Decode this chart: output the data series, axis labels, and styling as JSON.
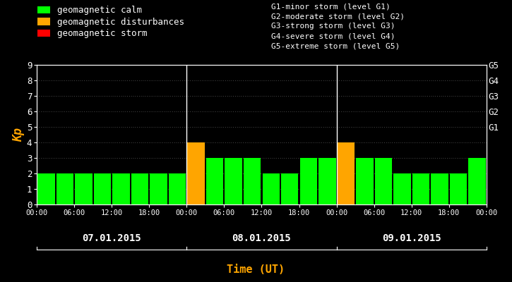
{
  "background_color": "#000000",
  "bar_values": [
    2,
    2,
    2,
    2,
    2,
    2,
    2,
    2,
    4,
    3,
    3,
    3,
    2,
    2,
    3,
    3,
    4,
    3,
    3,
    2,
    2,
    2,
    2,
    3
  ],
  "bar_colors": [
    "#00ff00",
    "#00ff00",
    "#00ff00",
    "#00ff00",
    "#00ff00",
    "#00ff00",
    "#00ff00",
    "#00ff00",
    "#ffa500",
    "#00ff00",
    "#00ff00",
    "#00ff00",
    "#00ff00",
    "#00ff00",
    "#00ff00",
    "#00ff00",
    "#ffa500",
    "#00ff00",
    "#00ff00",
    "#00ff00",
    "#00ff00",
    "#00ff00",
    "#00ff00",
    "#00ff00"
  ],
  "xtick_labels": [
    "00:00",
    "06:00",
    "12:00",
    "18:00",
    "00:00",
    "06:00",
    "12:00",
    "18:00",
    "00:00",
    "06:00",
    "12:00",
    "18:00",
    "00:00"
  ],
  "day_labels": [
    "07.01.2015",
    "08.01.2015",
    "09.01.2015"
  ],
  "day_dividers": [
    7.5,
    15.5
  ],
  "ylabel": "Kp",
  "xlabel": "Time (UT)",
  "ylim": [
    0,
    9
  ],
  "yticks": [
    0,
    1,
    2,
    3,
    4,
    5,
    6,
    7,
    8,
    9
  ],
  "right_ytick_positions": [
    5,
    6,
    7,
    8,
    9
  ],
  "right_ytick_texts": [
    "G1",
    "G2",
    "G3",
    "G4",
    "G5"
  ],
  "legend_items": [
    {
      "label": "geomagnetic calm",
      "color": "#00ff00"
    },
    {
      "label": "geomagnetic disturbances",
      "color": "#ffa500"
    },
    {
      "label": "geomagnetic storm",
      "color": "#ff0000"
    }
  ],
  "legend2_lines": [
    "G1-minor storm (level G1)",
    "G2-moderate storm (level G2)",
    "G3-strong storm (level G3)",
    "G4-severe storm (level G4)",
    "G5-extreme storm (level G5)"
  ],
  "text_color": "#ffffff",
  "ylabel_color": "#ffa500",
  "xlabel_color": "#ffa500"
}
